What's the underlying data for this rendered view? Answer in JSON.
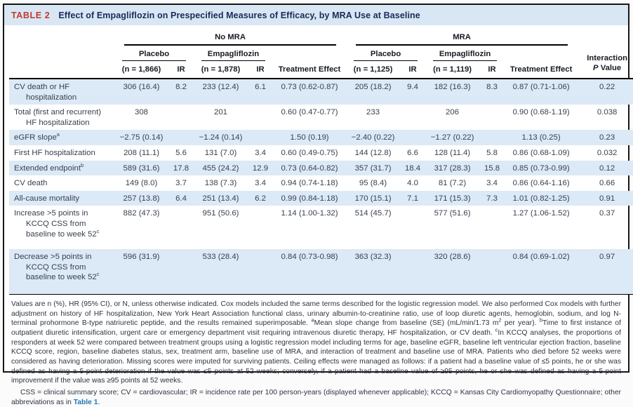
{
  "title": {
    "tag": "TABLE 2",
    "text": "Effect of Empagliflozin on Prespecified Measures of Efficacy, by MRA Use at Baseline"
  },
  "colors": {
    "accent_red": "#c23a2e",
    "title_navy": "#1a2a5a",
    "titlebar_blue": "#d9e7f4",
    "stripe_blue": "#dce9f6",
    "link_blue": "#2478b5"
  },
  "header": {
    "group_no_mra": "No MRA",
    "group_mra": "MRA",
    "placebo": "Placebo",
    "empagliflozin": "Empagliflozin",
    "no_mra_placebo_n": "(n = 1,866)",
    "no_mra_empa_n": "(n = 1,878)",
    "mra_placebo_n": "(n = 1,125)",
    "mra_empa_n": "(n = 1,119)",
    "ir": "IR",
    "treatment_effect": "Treatment Effect",
    "interaction_line1": "Interaction",
    "p_label": "P",
    "value_label": "Value"
  },
  "table": {
    "rows": [
      {
        "label": "CV death or HF hospitalization",
        "sup": "",
        "values": [
          "306 (16.4)",
          "8.2",
          "233 (12.4)",
          "6.1",
          "0.73 (0.62-0.87)",
          "205 (18.2)",
          "9.4",
          "182 (16.3)",
          "8.3",
          "0.87 (0.71-1.06)",
          "0.22"
        ]
      },
      {
        "label": "Total (first and recurrent) HF hospitalization",
        "sup": "",
        "values": [
          "308",
          "",
          "201",
          "",
          "0.60 (0.47-0.77)",
          "233",
          "",
          "206",
          "",
          "0.90 (0.68-1.19)",
          "0.038"
        ]
      },
      {
        "label": "eGFR slope",
        "sup": "a",
        "values": [
          "−2.75 (0.14)",
          "",
          "−1.24 (0.14)",
          "",
          "1.50 (0.19)",
          "−2.40 (0.22)",
          "",
          "−1.27 (0.22)",
          "",
          "1.13 (0.25)",
          "0.23"
        ]
      },
      {
        "label": "First HF hospitalization",
        "sup": "",
        "values": [
          "208 (11.1)",
          "5.6",
          "131 (7.0)",
          "3.4",
          "0.60 (0.49-0.75)",
          "144 (12.8)",
          "6.6",
          "128 (11.4)",
          "5.8",
          "0.86 (0.68-1.09)",
          "0.032"
        ]
      },
      {
        "label": "Extended endpoint",
        "sup": "b",
        "values": [
          "589 (31.6)",
          "17.8",
          "455 (24.2)",
          "12.9",
          "0.73 (0.64-0.82)",
          "357 (31.7)",
          "18.4",
          "317 (28.3)",
          "15.8",
          "0.85 (0.73-0.99)",
          "0.12"
        ]
      },
      {
        "label": "CV death",
        "sup": "",
        "values": [
          "149 (8.0)",
          "3.7",
          "138 (7.3)",
          "3.4",
          "0.94 (0.74-1.18)",
          "95 (8.4)",
          "4.0",
          "81 (7.2)",
          "3.4",
          "0.86 (0.64-1.16)",
          "0.66"
        ]
      },
      {
        "label": "All-cause mortality",
        "sup": "",
        "values": [
          "257 (13.8)",
          "6.4",
          "251 (13.4)",
          "6.2",
          "0.99 (0.84-1.18)",
          "170 (15.1)",
          "7.1",
          "171 (15.3)",
          "7.3",
          "1.01 (0.82-1.25)",
          "0.91"
        ]
      },
      {
        "label": "Increase >5 points in KCCQ CSS from baseline to week 52",
        "sup": "c",
        "values": [
          "882 (47.3)",
          "",
          "951 (50.6)",
          "",
          "1.14 (1.00-1.32)",
          "514 (45.7)",
          "",
          "577 (51.6)",
          "",
          "1.27 (1.06-1.52)",
          "0.37"
        ]
      },
      {
        "label": "Decrease >5 points in KCCQ CSS from baseline to week 52",
        "sup": "c",
        "values": [
          "596 (31.9)",
          "",
          "533 (28.4)",
          "",
          "0.84 (0.73-0.98)",
          "363 (32.3)",
          "",
          "320 (28.6)",
          "",
          "0.84 (0.69-1.02)",
          "0.97"
        ]
      }
    ]
  },
  "footnotes": {
    "para1_segments": [
      {
        "text": "Values are n (%), HR (95% CI), or N, unless otherwise indicated. Cox models included the same terms described for the logistic regression model. We also performed Cox models with further adjustment on history of HF hospitalization, New York Heart Association functional class, urinary albumin-to-creatinine ratio, use of loop diuretic agents, hemoglobin, sodium, and log N-terminal prohormone B-type natriuretic peptide, and the results remained superimposable. "
      },
      {
        "sup": "a"
      },
      {
        "text": "Mean slope change from baseline (SE) (mL/min/1.73 m"
      },
      {
        "sup": "2"
      },
      {
        "text": " per year). "
      },
      {
        "sup": "b"
      },
      {
        "text": "Time to first instance of outpatient diuretic intensification, urgent care or emergency department visit requiring intravenous diuretic therapy, HF hospitalization, or CV death. "
      },
      {
        "sup": "c"
      },
      {
        "text": "In KCCQ analyses, the proportions of responders at week 52 were compared between treatment groups using a logistic regression model including terms for age, baseline eGFR, baseline left ventricular ejection fraction, baseline KCCQ score, region, baseline diabetes status, sex, treatment arm, baseline use of MRA, and interaction of treatment and baseline use of MRA. Patients who died before 52 weeks were considered as having deterioration. Missing scores were imputed for surviving patients. Ceiling effects were managed as follows: if a patient had a baseline value of ≤5 points, he or she was defined as having a 5-point deterioration if the value was ≤5 points at 52 weeks; conversely, if a patient had a baseline value of ≥95 points, he or she was defined as having a 5-point improvement if the value was ≥95 points at 52 weeks."
      }
    ],
    "abbrev_text": "CSS = clinical summary score; CV = cardiovascular; IR = incidence rate per 100 person-years (displayed whenever applicable); KCCQ = Kansas City Cardiomyopathy Questionnaire; other abbreviations as in ",
    "abbrev_link": "Table 1",
    "abbrev_after": "."
  }
}
